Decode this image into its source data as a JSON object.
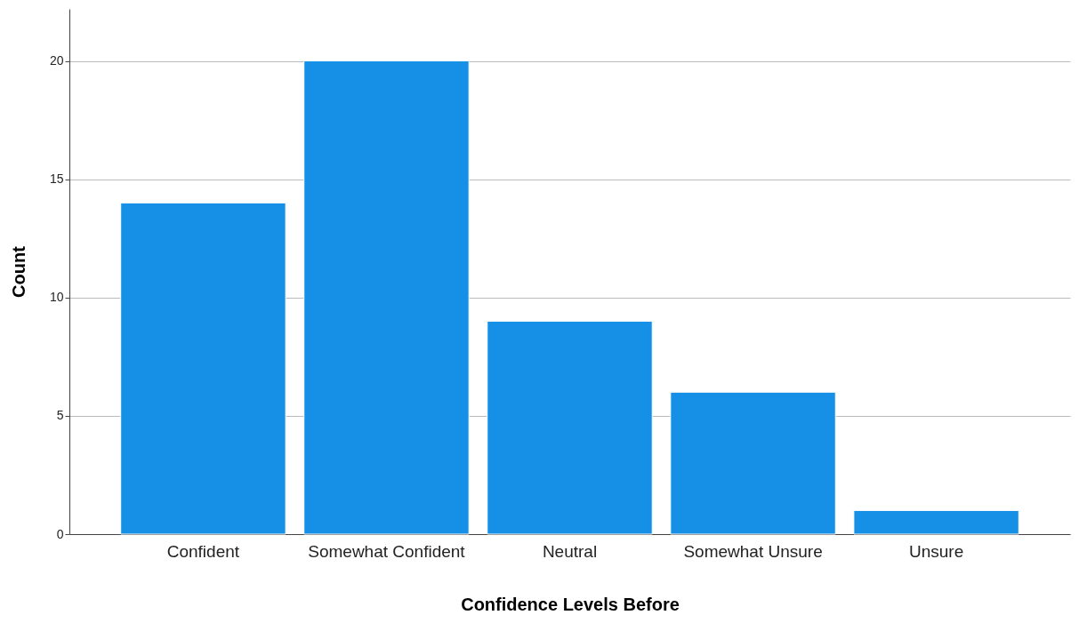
{
  "chart_data": {
    "type": "bar",
    "xlabel": "Confidence Levels Before",
    "ylabel": "Count",
    "categories": [
      "Confident",
      "Somewhat Confident",
      "Neutral",
      "Somewhat Unsure",
      "Unsure"
    ],
    "values": [
      14,
      20,
      9,
      6,
      1
    ],
    "color": "#1590e6",
    "ylim": [
      0,
      22.2
    ],
    "yticks": [
      0,
      5,
      10,
      15,
      20
    ],
    "grid": "y"
  }
}
